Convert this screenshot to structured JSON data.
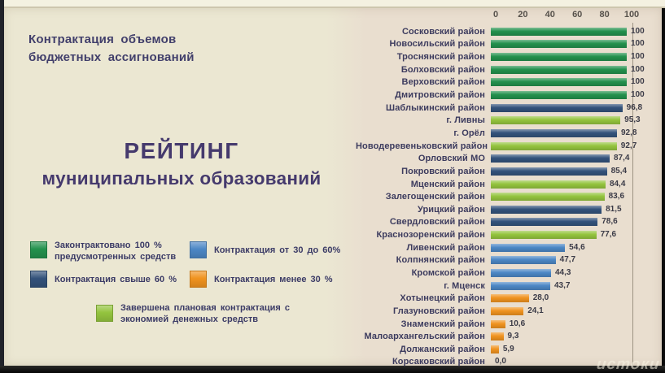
{
  "slide": {
    "header_line1": "Контрактация объемов",
    "header_line2": "бюджетных ассигнований",
    "title_line1": "РЕЙТИНГ",
    "title_line2": "муниципальных образований",
    "watermark": "истоки"
  },
  "palette": {
    "contracted_100": "#23914d",
    "over_60": "#33527b",
    "from_30_to_60": "#4c87c5",
    "under_30": "#f0931f",
    "saved": "#94c43e"
  },
  "legend": {
    "items": [
      {
        "key": "contracted_100",
        "lines": [
          "Законтрактовано 100 %",
          "предусмотренных средств"
        ]
      },
      {
        "key": "from_30_to_60",
        "lines": [
          "Контрактация от 30 до 60%"
        ]
      },
      {
        "key": "over_60",
        "lines": [
          "Контрактация свыше 60 %"
        ]
      },
      {
        "key": "under_30",
        "lines": [
          "Контрактация менее 30 %"
        ]
      },
      {
        "key": "saved",
        "lines": [
          "Завершена плановая контрактация с",
          "экономией денежных средств"
        ]
      }
    ]
  },
  "chart_data": {
    "type": "bar",
    "orientation": "horizontal",
    "title": "Рейтинг муниципальных образований по контрактации объемов бюджетных ассигнований",
    "xlabel": "",
    "ylabel": "",
    "xlim": [
      0,
      100
    ],
    "x_ticks": [
      "0",
      "20",
      "40",
      "60",
      "80",
      "100"
    ],
    "grid": "single line at 100, axis on top",
    "legend_position": "left panel",
    "rows": [
      {
        "label": "Сосковский район",
        "value": 100,
        "display": "100",
        "key": "contracted_100"
      },
      {
        "label": "Новосильский район",
        "value": 100,
        "display": "100",
        "key": "contracted_100"
      },
      {
        "label": "Троснянский район",
        "value": 100,
        "display": "100",
        "key": "contracted_100"
      },
      {
        "label": "Болховский район",
        "value": 100,
        "display": "100",
        "key": "contracted_100"
      },
      {
        "label": "Верховский район",
        "value": 100,
        "display": "100",
        "key": "contracted_100"
      },
      {
        "label": "Дмитровский район",
        "value": 100,
        "display": "100",
        "key": "contracted_100"
      },
      {
        "label": "Шаблыкинский район",
        "value": 96.8,
        "display": "96,8",
        "key": "over_60"
      },
      {
        "label": "г. Ливны",
        "value": 95.3,
        "display": "95,3",
        "key": "saved"
      },
      {
        "label": "г. Орёл",
        "value": 92.8,
        "display": "92,8",
        "key": "over_60"
      },
      {
        "label": "Новодеревеньковский район",
        "value": 92.7,
        "display": "92,7",
        "key": "saved"
      },
      {
        "label": "Орловский МО",
        "value": 87.4,
        "display": "87,4",
        "key": "over_60"
      },
      {
        "label": "Покровский район",
        "value": 85.4,
        "display": "85,4",
        "key": "over_60"
      },
      {
        "label": "Мценский район",
        "value": 84.4,
        "display": "84,4",
        "key": "saved"
      },
      {
        "label": "Залегощенский район",
        "value": 83.6,
        "display": "83,6",
        "key": "saved"
      },
      {
        "label": "Урицкий район",
        "value": 81.5,
        "display": "81,5",
        "key": "over_60"
      },
      {
        "label": "Свердловский район",
        "value": 78.6,
        "display": "78,6",
        "key": "over_60"
      },
      {
        "label": "Краснозоренский район",
        "value": 77.6,
        "display": "77,6",
        "key": "saved"
      },
      {
        "label": "Ливенский район",
        "value": 54.6,
        "display": "54,6",
        "key": "from_30_to_60"
      },
      {
        "label": "Колпнянский район",
        "value": 47.7,
        "display": "47,7",
        "key": "from_30_to_60"
      },
      {
        "label": "Кромской район",
        "value": 44.3,
        "display": "44,3",
        "key": "from_30_to_60"
      },
      {
        "label": "г. Мценск",
        "value": 43.7,
        "display": "43,7",
        "key": "from_30_to_60"
      },
      {
        "label": "Хотынецкий район",
        "value": 28.0,
        "display": "28,0",
        "key": "under_30"
      },
      {
        "label": "Глазуновский район",
        "value": 24.1,
        "display": "24,1",
        "key": "under_30"
      },
      {
        "label": "Знаменский район",
        "value": 10.6,
        "display": "10,6",
        "key": "under_30"
      },
      {
        "label": "Малоархангельский район",
        "value": 9.3,
        "display": "9,3",
        "key": "under_30"
      },
      {
        "label": "Должанский район",
        "value": 5.9,
        "display": "5,9",
        "key": "under_30"
      },
      {
        "label": "Корсаковский район",
        "value": 0,
        "display": "0,0",
        "key": "none"
      }
    ]
  }
}
